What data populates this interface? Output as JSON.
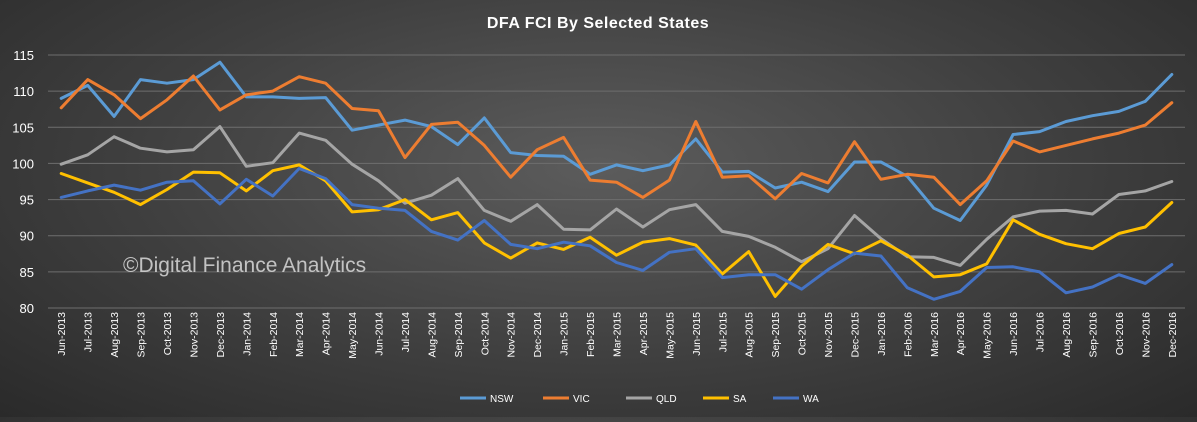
{
  "chart_data": {
    "type": "line",
    "title": "DFA FCI By Selected States",
    "watermark": "©Digital Finance Analytics",
    "xlabel": "",
    "ylabel": "",
    "ylim": [
      80,
      115
    ],
    "yticks": [
      80,
      85,
      90,
      95,
      100,
      105,
      110,
      115
    ],
    "grid": true,
    "legend_position": "bottom",
    "categories": [
      "Jun-2013",
      "Jul-2013",
      "Aug-2013",
      "Sep-2013",
      "Oct-2013",
      "Nov-2013",
      "Dec-2013",
      "Jan-2014",
      "Feb-2014",
      "Mar-2014",
      "Apr-2014",
      "May-2014",
      "Jun-2014",
      "Jul-2014",
      "Aug-2014",
      "Sep-2014",
      "Oct-2014",
      "Nov-2014",
      "Dec-2014",
      "Jan-2015",
      "Feb-2015",
      "Mar-2015",
      "Apr-2015",
      "May-2015",
      "Jun-2015",
      "Jul-2015",
      "Aug-2015",
      "Sep-2015",
      "Oct-2015",
      "Nov-2015",
      "Dec-2015",
      "Jan-2016",
      "Feb-2016",
      "Mar-2016",
      "Apr-2016",
      "May-2016",
      "Jun-2016",
      "Jul-2016",
      "Aug-2016",
      "Sep-2016",
      "Oct-2016",
      "Nov-2016",
      "Dec-2016"
    ],
    "series": [
      {
        "name": "NSW",
        "color": "#5b9bd5",
        "values": [
          109.0,
          110.8,
          106.5,
          111.6,
          111.1,
          111.6,
          114.0,
          109.2,
          109.2,
          109.0,
          109.1,
          104.6,
          105.3,
          106.0,
          105.1,
          102.6,
          106.3,
          101.5,
          101.1,
          101.0,
          98.5,
          99.8,
          99.0,
          99.8,
          103.4,
          98.8,
          98.9,
          96.6,
          97.4,
          96.1,
          100.2,
          100.2,
          98.2,
          93.8,
          92.1,
          97.0,
          104.0,
          104.4,
          105.8,
          106.6,
          107.2,
          108.6,
          112.3
        ]
      },
      {
        "name": "VIC",
        "color": "#ed7d31",
        "values": [
          107.7,
          111.6,
          109.5,
          106.2,
          108.8,
          112.1,
          107.4,
          109.5,
          110.0,
          112.0,
          111.1,
          107.6,
          107.3,
          100.8,
          105.4,
          105.7,
          102.5,
          98.1,
          101.9,
          103.6,
          97.7,
          97.4,
          95.3,
          97.7,
          105.8,
          98.1,
          98.3,
          95.1,
          98.6,
          97.3,
          103.0,
          97.8,
          98.5,
          98.1,
          94.3,
          97.6,
          103.1,
          101.6,
          102.5,
          103.4,
          104.2,
          105.3,
          108.4
        ]
      },
      {
        "name": "QLD",
        "color": "#a5a5a5",
        "values": [
          99.9,
          101.2,
          103.7,
          102.1,
          101.6,
          101.9,
          105.1,
          99.6,
          100.1,
          104.2,
          103.2,
          99.9,
          97.6,
          94.5,
          95.6,
          97.9,
          93.5,
          92.0,
          94.3,
          90.9,
          90.8,
          93.7,
          91.2,
          93.6,
          94.3,
          90.6,
          89.9,
          88.4,
          86.4,
          88.2,
          92.8,
          89.6,
          87.1,
          87.0,
          85.9,
          89.5,
          92.6,
          93.4,
          93.5,
          93.0,
          95.7,
          96.2,
          97.5
        ]
      },
      {
        "name": "SA",
        "color": "#ffc000",
        "values": [
          98.6,
          97.3,
          96.0,
          94.3,
          96.4,
          98.8,
          98.7,
          96.2,
          99.0,
          99.8,
          97.6,
          93.3,
          93.6,
          95.0,
          92.2,
          93.2,
          89.0,
          86.9,
          89.0,
          88.1,
          89.8,
          87.3,
          89.1,
          89.6,
          88.7,
          84.7,
          87.8,
          81.6,
          85.8,
          88.8,
          87.5,
          89.3,
          87.3,
          84.3,
          84.6,
          86.1,
          92.2,
          90.2,
          88.9,
          88.2,
          90.3,
          91.2,
          94.6
        ]
      },
      {
        "name": "WA",
        "color": "#4472c4",
        "values": [
          95.3,
          96.2,
          97.0,
          96.3,
          97.4,
          97.6,
          94.4,
          97.8,
          95.5,
          99.3,
          97.9,
          94.3,
          93.8,
          93.5,
          90.6,
          89.4,
          92.1,
          88.8,
          88.2,
          89.1,
          88.6,
          86.3,
          85.2,
          87.7,
          88.2,
          84.2,
          84.6,
          84.6,
          82.6,
          85.3,
          87.6,
          87.2,
          82.8,
          81.2,
          82.3,
          85.6,
          85.7,
          85.0,
          82.1,
          82.9,
          84.6,
          83.4,
          86.0
        ]
      }
    ]
  }
}
